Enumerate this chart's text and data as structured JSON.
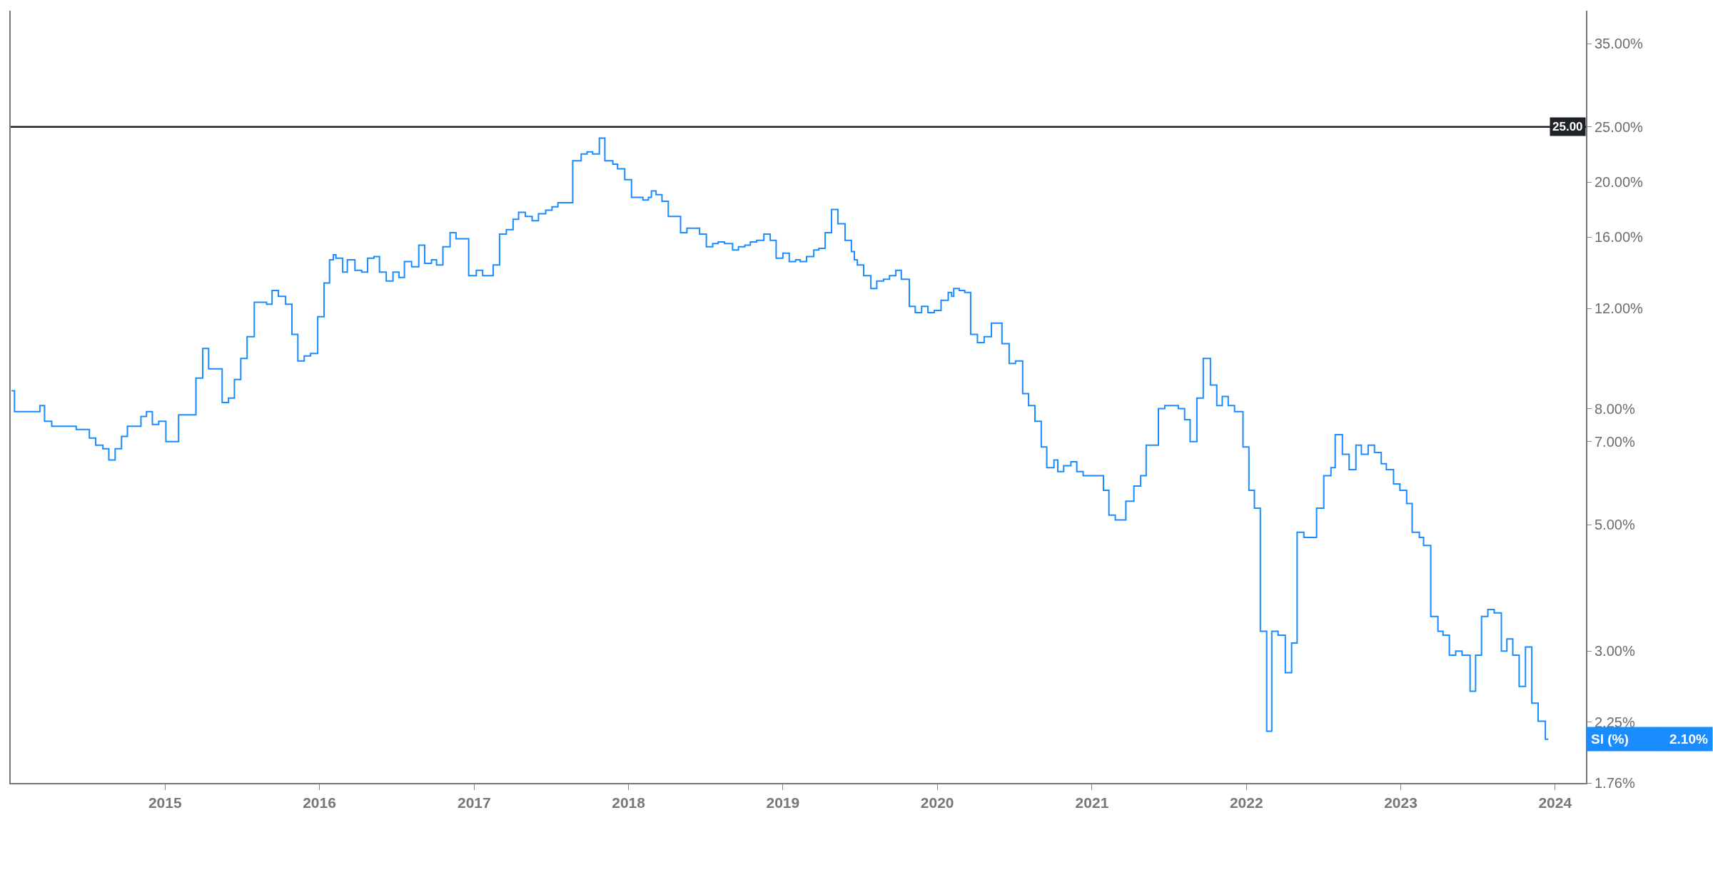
{
  "chart_data": {
    "type": "step",
    "series": [
      {
        "name": "SI (%)",
        "color": "#1a8cff",
        "x": [
          "2014-01-03",
          "2014-01-10",
          "2014-03-11",
          "2014-03-22",
          "2014-04-08",
          "2014-06-05",
          "2014-07-06",
          "2014-07-21",
          "2014-08-07",
          "2014-08-21",
          "2014-09-05",
          "2014-09-20",
          "2014-10-04",
          "2014-11-05",
          "2014-11-18",
          "2014-12-02",
          "2014-12-17",
          "2015-01-03",
          "2015-02-02",
          "2015-03-03",
          "2015-03-15",
          "2015-03-31",
          "2015-04-14",
          "2015-05-16",
          "2015-05-31",
          "2015-06-14",
          "2015-06-29",
          "2015-07-14",
          "2015-07-31",
          "2015-08-29",
          "2015-09-11",
          "2015-09-26",
          "2015-10-13",
          "2015-10-28",
          "2015-11-11",
          "2015-11-26",
          "2015-12-11",
          "2015-12-28",
          "2016-01-12",
          "2016-01-25",
          "2016-02-03",
          "2016-02-09",
          "2016-02-25",
          "2016-03-07",
          "2016-03-25",
          "2016-04-10",
          "2016-04-24",
          "2016-05-09",
          "2016-05-22",
          "2016-06-07",
          "2016-06-23",
          "2016-07-07",
          "2016-07-20",
          "2016-08-06",
          "2016-08-23",
          "2016-09-06",
          "2016-09-22",
          "2016-10-04",
          "2016-10-19",
          "2016-11-05",
          "2016-11-19",
          "2016-12-19",
          "2017-01-06",
          "2017-01-21",
          "2017-02-15",
          "2017-03-02",
          "2017-03-18",
          "2017-04-03",
          "2017-04-16",
          "2017-05-02",
          "2017-05-18",
          "2017-06-02",
          "2017-06-19",
          "2017-07-04",
          "2017-07-18",
          "2017-08-22",
          "2017-09-11",
          "2017-09-25",
          "2017-10-08",
          "2017-10-24",
          "2017-11-06",
          "2017-11-25",
          "2017-12-06",
          "2017-12-23",
          "2018-01-08",
          "2018-02-04",
          "2018-02-17",
          "2018-02-24",
          "2018-03-07",
          "2018-03-21",
          "2018-04-05",
          "2018-05-04",
          "2018-05-19",
          "2018-06-18",
          "2018-07-04",
          "2018-07-19",
          "2018-08-01",
          "2018-08-16",
          "2018-09-04",
          "2018-09-18",
          "2018-10-03",
          "2018-10-16",
          "2018-10-31",
          "2018-11-17",
          "2018-12-02",
          "2018-12-16",
          "2019-01-01",
          "2019-01-16",
          "2019-01-31",
          "2019-02-11",
          "2019-02-26",
          "2019-03-15",
          "2019-03-27",
          "2019-04-11",
          "2019-04-26",
          "2019-05-11",
          "2019-05-28",
          "2019-06-12",
          "2019-06-19",
          "2019-06-26",
          "2019-07-11",
          "2019-07-28",
          "2019-08-11",
          "2019-08-27",
          "2019-09-10",
          "2019-09-25",
          "2019-10-08",
          "2019-10-27",
          "2019-11-10",
          "2019-11-25",
          "2019-12-10",
          "2019-12-25",
          "2020-01-10",
          "2020-01-27",
          "2020-02-04",
          "2020-02-09",
          "2020-02-22",
          "2020-03-06",
          "2020-03-20",
          "2020-04-05",
          "2020-04-21",
          "2020-05-08",
          "2020-06-02",
          "2020-06-19",
          "2020-07-04",
          "2020-07-21",
          "2020-08-04",
          "2020-08-19",
          "2020-09-03",
          "2020-09-16",
          "2020-10-03",
          "2020-10-12",
          "2020-10-26",
          "2020-11-12",
          "2020-11-26",
          "2020-12-11",
          "2021-01-28",
          "2021-02-10",
          "2021-02-25",
          "2021-03-22",
          "2021-04-10",
          "2021-04-26",
          "2021-05-09",
          "2021-06-07",
          "2021-06-22",
          "2021-07-24",
          "2021-08-08",
          "2021-08-21",
          "2021-09-06",
          "2021-09-21",
          "2021-10-08",
          "2021-10-23",
          "2021-11-05",
          "2021-11-19",
          "2021-12-04",
          "2021-12-24",
          "2022-01-07",
          "2022-01-20",
          "2022-02-03",
          "2022-02-18",
          "2022-03-02",
          "2022-03-17",
          "2022-04-03",
          "2022-04-18",
          "2022-05-01",
          "2022-05-17",
          "2022-06-16",
          "2022-07-03",
          "2022-07-20",
          "2022-07-30",
          "2022-08-16",
          "2022-09-01",
          "2022-09-17",
          "2022-09-30",
          "2022-10-16",
          "2022-10-31",
          "2022-11-16",
          "2022-11-28",
          "2022-12-15",
          "2022-12-30",
          "2023-01-15",
          "2023-01-28",
          "2023-02-14",
          "2023-02-24",
          "2023-03-13",
          "2023-03-30",
          "2023-04-11",
          "2023-04-26",
          "2023-05-11",
          "2023-05-26",
          "2023-06-14",
          "2023-06-27",
          "2023-07-11",
          "2023-07-26",
          "2023-08-10",
          "2023-08-27",
          "2023-09-09",
          "2023-09-23",
          "2023-10-08",
          "2023-10-23",
          "2023-11-07",
          "2023-11-22",
          "2023-12-09",
          "2023-12-16"
        ],
        "values": [
          8.6,
          7.9,
          8.1,
          7.6,
          7.45,
          7.35,
          7.1,
          6.9,
          6.8,
          6.5,
          6.8,
          7.15,
          7.45,
          7.75,
          7.9,
          7.5,
          7.6,
          7.0,
          7.8,
          7.8,
          9.05,
          10.2,
          9.4,
          8.2,
          8.35,
          9.0,
          9.8,
          10.7,
          12.3,
          12.2,
          12.9,
          12.6,
          12.2,
          10.8,
          9.7,
          9.9,
          10.0,
          11.6,
          13.3,
          14.6,
          14.9,
          14.7,
          13.9,
          14.6,
          14.0,
          13.9,
          14.7,
          14.8,
          13.9,
          13.4,
          13.9,
          13.6,
          14.5,
          14.2,
          15.5,
          14.4,
          14.6,
          14.3,
          15.4,
          16.3,
          15.9,
          13.7,
          14.0,
          13.7,
          14.3,
          16.2,
          16.5,
          17.2,
          17.7,
          17.4,
          17.1,
          17.6,
          17.85,
          18.1,
          18.4,
          21.8,
          22.4,
          22.6,
          22.4,
          23.9,
          21.8,
          21.5,
          21.1,
          20.2,
          18.8,
          18.6,
          18.8,
          19.3,
          19.0,
          18.5,
          17.4,
          16.3,
          16.6,
          16.2,
          15.4,
          15.6,
          15.7,
          15.6,
          15.2,
          15.4,
          15.5,
          15.7,
          15.8,
          16.2,
          15.8,
          14.7,
          15.0,
          14.5,
          14.6,
          14.5,
          14.8,
          15.2,
          15.3,
          16.3,
          17.9,
          16.9,
          15.8,
          15.1,
          14.6,
          14.3,
          13.7,
          13.0,
          13.4,
          13.5,
          13.7,
          14.0,
          13.5,
          12.1,
          11.8,
          12.1,
          11.8,
          11.9,
          12.4,
          12.8,
          12.6,
          13.0,
          12.9,
          12.8,
          10.8,
          10.45,
          10.7,
          11.3,
          10.4,
          9.6,
          9.7,
          8.5,
          8.1,
          7.6,
          6.85,
          6.3,
          6.5,
          6.2,
          6.35,
          6.45,
          6.2,
          6.1,
          5.75,
          5.2,
          5.1,
          5.5,
          5.85,
          6.1,
          6.9,
          8.0,
          8.1,
          8.0,
          7.65,
          7.0,
          8.35,
          9.8,
          8.8,
          8.1,
          8.4,
          8.1,
          7.9,
          6.85,
          5.75,
          5.35,
          3.25,
          2.17,
          3.25,
          3.2,
          2.75,
          3.1,
          4.85,
          4.75,
          5.35,
          6.1,
          6.3,
          7.2,
          6.65,
          6.25,
          6.9,
          6.65,
          6.9,
          6.7,
          6.4,
          6.25,
          5.9,
          5.75,
          5.45,
          4.85,
          4.75,
          4.6,
          3.45,
          3.25,
          3.2,
          2.95,
          3.0,
          2.95,
          2.55,
          2.95,
          3.45,
          3.55,
          3.5,
          3.0,
          3.15,
          2.95,
          2.6,
          3.05,
          2.43,
          2.26,
          2.1,
          2.1
        ]
      }
    ],
    "log": "y",
    "xlim": [
      "2014-01-01",
      "2024-03-14"
    ],
    "xticks": [
      {
        "value": "2015-01-01",
        "label": "2015"
      },
      {
        "value": "2016-01-01",
        "label": "2016"
      },
      {
        "value": "2017-01-01",
        "label": "2017"
      },
      {
        "value": "2018-01-01",
        "label": "2018"
      },
      {
        "value": "2019-01-01",
        "label": "2019"
      },
      {
        "value": "2020-01-01",
        "label": "2020"
      },
      {
        "value": "2021-01-01",
        "label": "2021"
      },
      {
        "value": "2022-01-01",
        "label": "2022"
      },
      {
        "value": "2023-01-01",
        "label": "2023"
      },
      {
        "value": "2024-01-01",
        "label": "2024"
      }
    ],
    "ylim": [
      1.76,
      40
    ],
    "yticks": [
      {
        "value": 1.76,
        "label": "1.76%"
      },
      {
        "value": 2.25,
        "label": "2.25%"
      },
      {
        "value": 3,
        "label": "3.00%"
      },
      {
        "value": 5,
        "label": "5.00%"
      },
      {
        "value": 7,
        "label": "7.00%"
      },
      {
        "value": 8,
        "label": "8.00%"
      },
      {
        "value": 12,
        "label": "12.00%"
      },
      {
        "value": 16,
        "label": "16.00%"
      },
      {
        "value": 20,
        "label": "20.00%"
      },
      {
        "value": 25,
        "label": "25.00%"
      },
      {
        "value": 35,
        "label": "35.00%"
      }
    ],
    "ref_lines": [
      {
        "axis": "y",
        "value": 25,
        "label": "25.00",
        "color": "#1f2329"
      }
    ],
    "annotations": [
      "2.10%"
    ],
    "legend": "right"
  }
}
